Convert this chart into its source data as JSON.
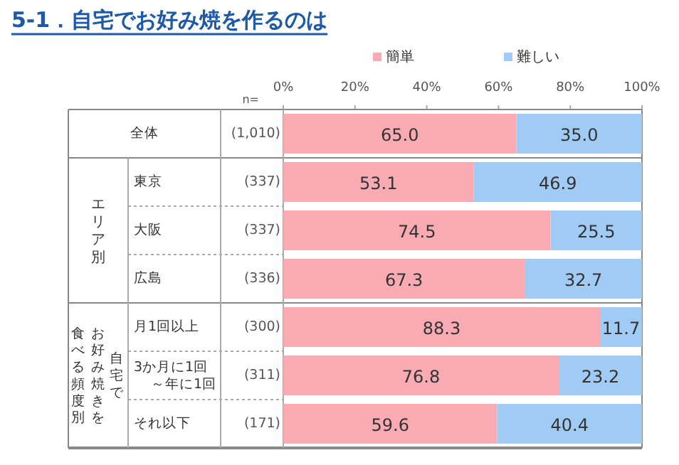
{
  "chart_data": {
    "type": "bar",
    "title": "5-1．自宅でお好み焼を作るのは",
    "orientation": "horizontal",
    "stacked": true,
    "categories": [
      "全体",
      "東京",
      "大阪",
      "広島",
      "月1回以上",
      "3か月に1回～年に1回",
      "それ以下"
    ],
    "series": [
      {
        "name": "簡単",
        "color": "#f9aab3",
        "values": [
          65.0,
          53.1,
          74.5,
          67.3,
          88.3,
          76.8,
          59.6
        ]
      },
      {
        "name": "難しい",
        "color": "#9fcbf5",
        "values": [
          35.0,
          46.9,
          25.5,
          32.7,
          11.7,
          23.2,
          40.4
        ]
      }
    ],
    "xlim": [
      0,
      100
    ],
    "xticks": [
      {
        "value": 0,
        "label": "0%"
      },
      {
        "value": 20,
        "label": "20%"
      },
      {
        "value": 40,
        "label": "40%"
      },
      {
        "value": 60,
        "label": "60%"
      },
      {
        "value": 80,
        "label": "80%"
      },
      {
        "value": 100,
        "label": "100%"
      }
    ],
    "value_labels": [
      [
        "65.0",
        "53.1",
        "74.5",
        "67.3",
        "88.3",
        "76.8",
        "59.6"
      ],
      [
        "35.0",
        "46.9",
        "25.5",
        "32.7",
        "11.7",
        "23.2",
        "40.4"
      ]
    ],
    "legend": "top",
    "annotations": [
      "n=",
      "(1,010)",
      "(337)",
      "(337)",
      "(336)",
      "(300)",
      "(311)",
      "(171)",
      "エリア別",
      "自宅で",
      "お好み焼きを",
      "食べる頻度別"
    ]
  }
}
